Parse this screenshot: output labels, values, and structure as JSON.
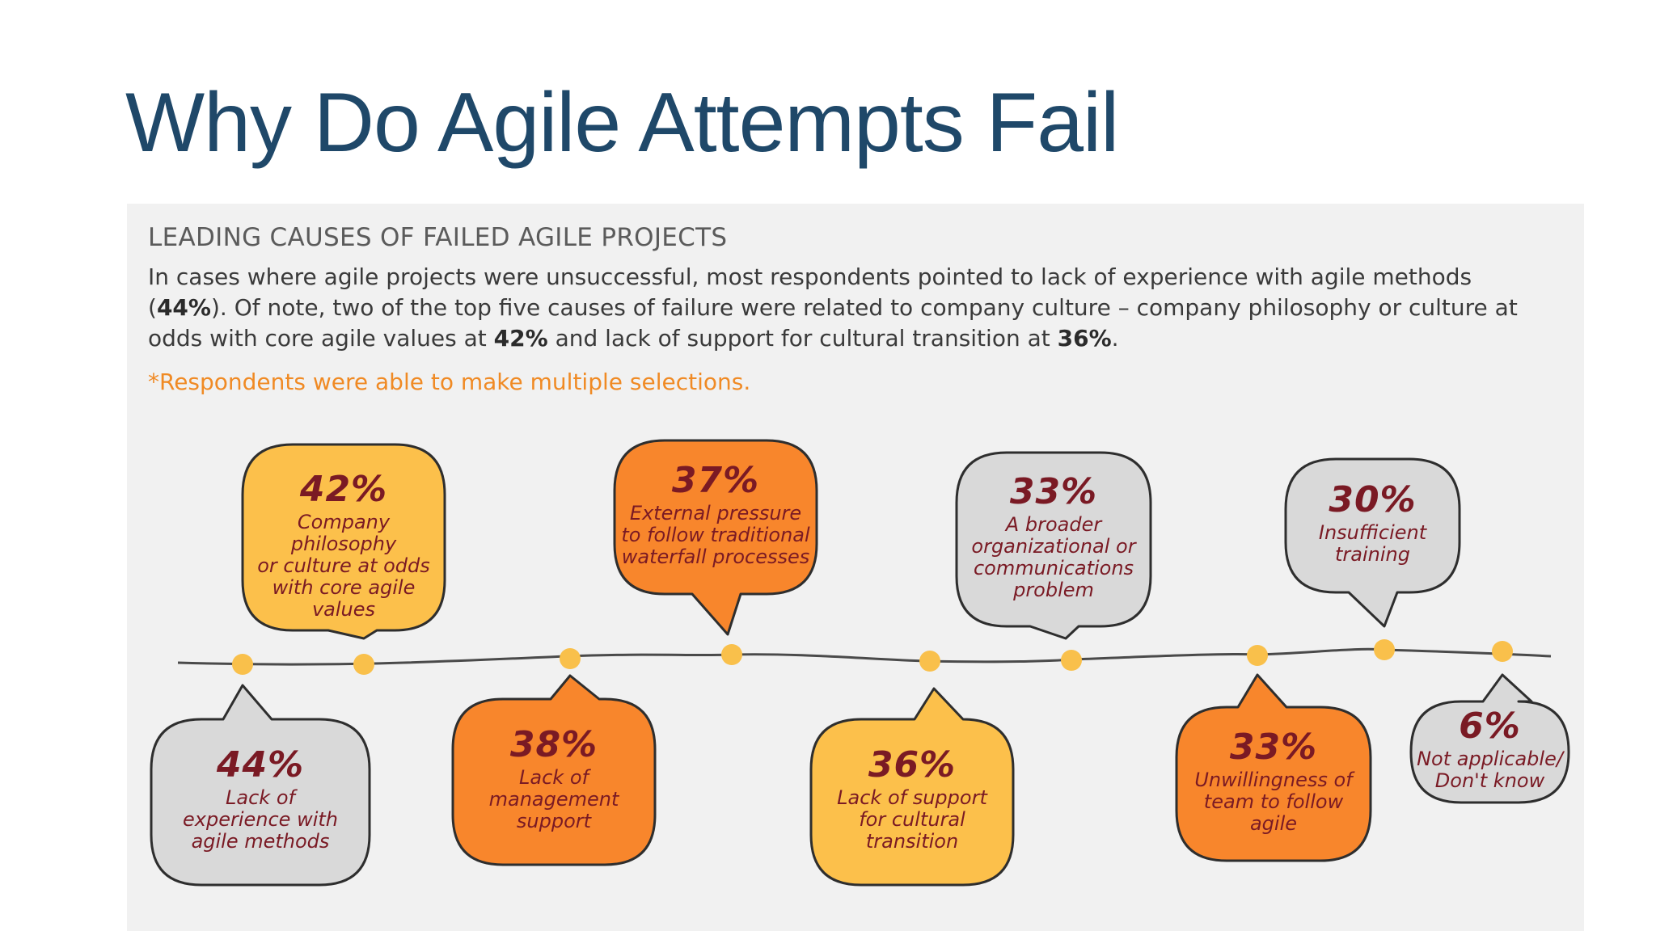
{
  "slide": {
    "title": "Why Do Agile Attempts Fail"
  },
  "panel": {
    "heading": "LEADING CAUSES OF FAILED AGILE PROJECTS",
    "description": {
      "part1": "In cases where agile projects were unsuccessful, most respondents pointed to lack of experience with agile methods (",
      "bold1": "44%",
      "part2": "). Of note, two of the top five causes of failure were related to company culture – company philosophy or culture at odds with core agile values at ",
      "bold2": "42%",
      "part3": " and lack of support for cultural transition at ",
      "bold3": "36%",
      "part4": "."
    },
    "note": "*Respondents were able to make multiple selections."
  },
  "colors": {
    "title": "#1f4869",
    "gray_bubble": "#d9d9d9",
    "yellow_bubble": "#fcc04b",
    "orange_bubble": "#f8862c",
    "text_dark_red": "#7a1a24",
    "dot": "#f9c04b",
    "note": "#f08a24"
  },
  "causes": [
    {
      "pct": "44%",
      "label": [
        "Lack of",
        "experience with",
        "agile methods"
      ],
      "value": 44,
      "color": "gray",
      "position": "below"
    },
    {
      "pct": "42%",
      "label": [
        "Company philosophy",
        "or culture at odds",
        "with core agile",
        "values"
      ],
      "value": 42,
      "color": "yellow",
      "position": "above"
    },
    {
      "pct": "38%",
      "label": [
        "Lack of",
        "management",
        "support"
      ],
      "value": 38,
      "color": "orange",
      "position": "below"
    },
    {
      "pct": "37%",
      "label": [
        "External pressure",
        "to follow traditional",
        "waterfall processes"
      ],
      "value": 37,
      "color": "orange",
      "position": "above"
    },
    {
      "pct": "36%",
      "label": [
        "Lack of support",
        "for cultural",
        "transition"
      ],
      "value": 36,
      "color": "yellow",
      "position": "below"
    },
    {
      "pct": "33%",
      "label": [
        "A broader",
        "organizational or",
        "communications",
        "problem"
      ],
      "value": 33,
      "color": "gray",
      "position": "above"
    },
    {
      "pct": "33%",
      "label": [
        "Unwillingness of",
        "team to follow",
        "agile"
      ],
      "value": 33,
      "color": "orange",
      "position": "below"
    },
    {
      "pct": "30%",
      "label": [
        "Insufficient",
        "training"
      ],
      "value": 30,
      "color": "gray",
      "position": "above"
    },
    {
      "pct": "6%",
      "label": [
        "Not applicable/",
        "Don't know"
      ],
      "value": 6,
      "color": "gray",
      "position": "below"
    }
  ]
}
